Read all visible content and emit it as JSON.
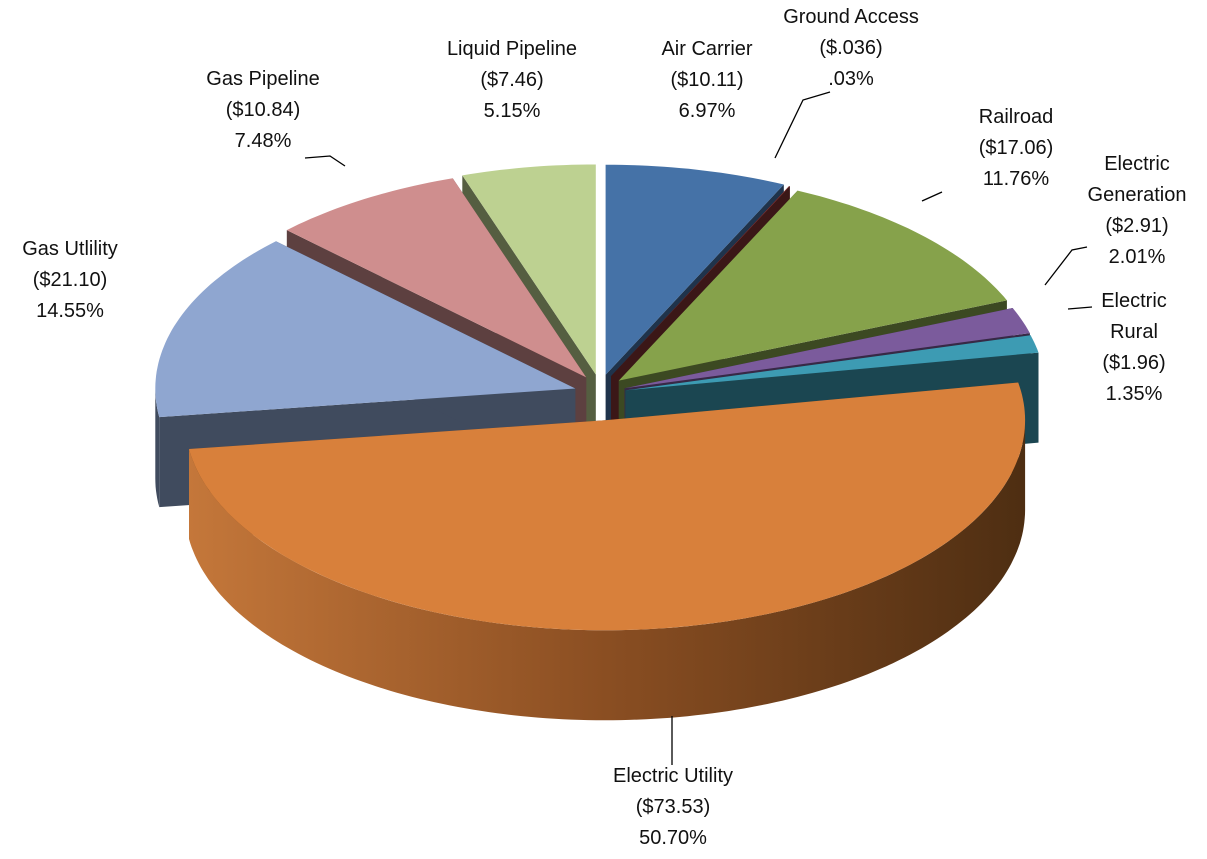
{
  "chart_data": {
    "type": "pie3d",
    "categories": [
      "Air Carrier",
      "Ground Access",
      "Railroad",
      "Electric Generation",
      "Electric Rural",
      "Electric Utility",
      "Gas Utlility",
      "Gas Pipeline",
      "Liquid Pipeline"
    ],
    "amount_labels": [
      "($10.11)",
      "($.036)",
      "($17.06)",
      "($2.91)",
      "($1.96)",
      "($73.53)",
      "($21.10)",
      "($10.84)",
      "($7.46)"
    ],
    "values": [
      6.97,
      0.03,
      11.76,
      2.01,
      1.35,
      50.7,
      14.55,
      7.48,
      5.15
    ],
    "value_labels": [
      "6.97%",
      ".03%",
      "11.76%",
      "2.01%",
      "1.35%",
      "50.70%",
      "14.55%",
      "7.48%",
      "5.15%"
    ],
    "colors": [
      "#4572a7",
      "#843434",
      "#86a24b",
      "#7b5b9c",
      "#3d9bb3",
      "#d8803b",
      "#8fa6d0",
      "#cf8e8e",
      "#bdd191"
    ]
  }
}
